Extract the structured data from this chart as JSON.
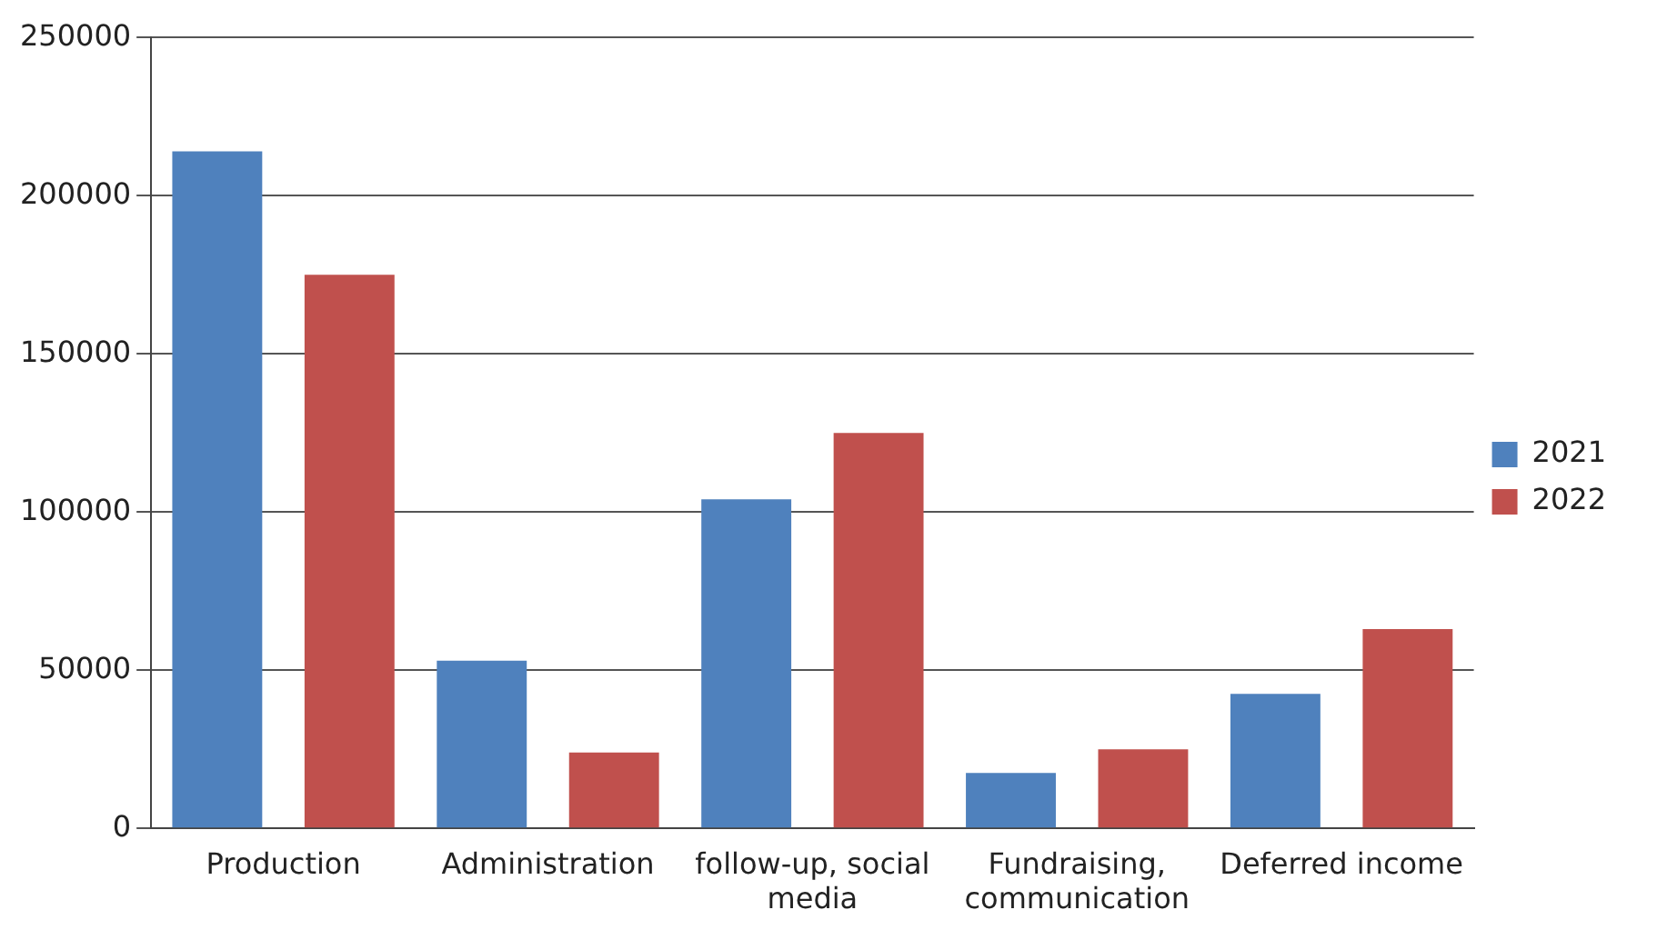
{
  "chart_data": {
    "type": "bar",
    "categories": [
      "Production",
      "Administration",
      "follow-up, social media",
      "Fundraising, communication",
      "Deferred income"
    ],
    "series": [
      {
        "name": "2021",
        "color": "#4f81bd",
        "values": [
          214000,
          53000,
          104000,
          17500,
          42500
        ]
      },
      {
        "name": "2022",
        "color": "#c0504d",
        "values": [
          175000,
          24000,
          125000,
          25000,
          63000
        ]
      }
    ],
    "ylim": [
      0,
      250000
    ],
    "yticks": [
      0,
      50000,
      100000,
      150000,
      200000,
      250000
    ],
    "grid": "y",
    "legend": "right"
  }
}
